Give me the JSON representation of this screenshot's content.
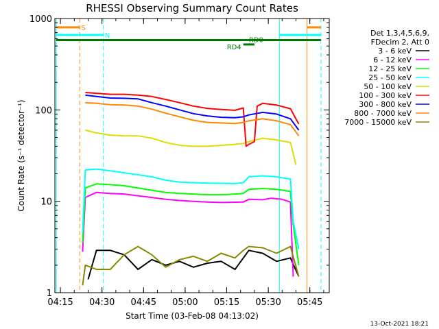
{
  "chart_data": {
    "type": "line",
    "title": "RHESSI Observing Summary Count Rates",
    "xlabel": "Start Time (03-Feb-08 04:13:02)",
    "ylabel": "Count Rate (s⁻¹ detector⁻¹)",
    "yscale": "log",
    "ylim": [
      1,
      1000
    ],
    "xlim_minutes": [
      0,
      99
    ],
    "yticks": [
      {
        "v": 1,
        "label": "1"
      },
      {
        "v": 10,
        "label": "10"
      },
      {
        "v": 100,
        "label": "100"
      },
      {
        "v": 1000,
        "label": "1000"
      }
    ],
    "xticks": [
      {
        "t": 2.0,
        "label": "04:15"
      },
      {
        "t": 17.0,
        "label": "04:30"
      },
      {
        "t": 32.0,
        "label": "04:45"
      },
      {
        "t": 47.0,
        "label": "05:00"
      },
      {
        "t": 62.0,
        "label": "05:15"
      },
      {
        "t": 77.0,
        "label": "05:30"
      },
      {
        "t": 92.0,
        "label": "05:45"
      }
    ],
    "minor_tick_step_minutes": 5,
    "legend_header": [
      "Det 1,3,4,5,6,9,",
      "FDecim 2, Att 0"
    ],
    "legend_position": "right",
    "footer_date": "13-Oct-2021 18:21",
    "series": [
      {
        "name": "3 - 6 keV",
        "color": "#000000",
        "points": [
          [
            12,
            1.4
          ],
          [
            15,
            2.9
          ],
          [
            20,
            2.9
          ],
          [
            25,
            2.6
          ],
          [
            30,
            1.8
          ],
          [
            35,
            2.3
          ],
          [
            40,
            2.0
          ],
          [
            45,
            2.2
          ],
          [
            50,
            1.9
          ],
          [
            55,
            2.1
          ],
          [
            60,
            2.2
          ],
          [
            65,
            1.8
          ],
          [
            70,
            2.9
          ],
          [
            75,
            2.7
          ],
          [
            80,
            2.2
          ],
          [
            85,
            2.4
          ],
          [
            88,
            1.5
          ]
        ]
      },
      {
        "name": "6 - 12 keV",
        "color": "#ff00ff",
        "points": [
          [
            10,
            2.8
          ],
          [
            11,
            11
          ],
          [
            15,
            12.5
          ],
          [
            20,
            12.2
          ],
          [
            25,
            12.0
          ],
          [
            30,
            11.5
          ],
          [
            35,
            11.0
          ],
          [
            40,
            10.5
          ],
          [
            45,
            10.2
          ],
          [
            50,
            10.0
          ],
          [
            55,
            9.8
          ],
          [
            60,
            9.7
          ],
          [
            68,
            9.8
          ],
          [
            70,
            10.5
          ],
          [
            75,
            10.4
          ],
          [
            78,
            10.8
          ],
          [
            82,
            10.5
          ],
          [
            85,
            9.8
          ],
          [
            86,
            1.5
          ]
        ]
      },
      {
        "name": "12 - 25 keV",
        "color": "#00ff00",
        "points": [
          [
            10,
            3.5
          ],
          [
            11,
            14
          ],
          [
            15,
            15.5
          ],
          [
            20,
            15.2
          ],
          [
            25,
            14.8
          ],
          [
            30,
            14.0
          ],
          [
            35,
            13.2
          ],
          [
            40,
            12.5
          ],
          [
            45,
            12.2
          ],
          [
            50,
            12.0
          ],
          [
            55,
            11.8
          ],
          [
            60,
            11.8
          ],
          [
            65,
            12.0
          ],
          [
            68,
            12.2
          ],
          [
            70,
            13.5
          ],
          [
            75,
            13.8
          ],
          [
            80,
            13.5
          ],
          [
            85,
            12.8
          ],
          [
            86,
            5.5
          ],
          [
            88,
            2.0
          ]
        ]
      },
      {
        "name": "25 - 50 keV",
        "color": "#00ffff",
        "points": [
          [
            10,
            4.5
          ],
          [
            11,
            22
          ],
          [
            15,
            22.5
          ],
          [
            20,
            21.5
          ],
          [
            25,
            20.5
          ],
          [
            30,
            19.5
          ],
          [
            35,
            18.5
          ],
          [
            40,
            17.0
          ],
          [
            45,
            16.2
          ],
          [
            50,
            16.0
          ],
          [
            55,
            15.8
          ],
          [
            60,
            15.7
          ],
          [
            65,
            15.6
          ],
          [
            68,
            16.0
          ],
          [
            70,
            18.5
          ],
          [
            75,
            19.0
          ],
          [
            80,
            18.5
          ],
          [
            85,
            17.5
          ],
          [
            86,
            6.0
          ],
          [
            88,
            3.0
          ]
        ]
      },
      {
        "name": "50 - 100 keV",
        "color": "#dddd00",
        "points": [
          [
            11,
            60
          ],
          [
            15,
            56
          ],
          [
            20,
            53
          ],
          [
            25,
            52
          ],
          [
            30,
            52
          ],
          [
            35,
            49
          ],
          [
            40,
            44
          ],
          [
            45,
            41
          ],
          [
            50,
            40
          ],
          [
            55,
            40
          ],
          [
            60,
            41
          ],
          [
            65,
            42
          ],
          [
            68,
            43
          ],
          [
            70,
            45
          ],
          [
            75,
            49
          ],
          [
            80,
            47
          ],
          [
            85,
            44
          ],
          [
            87,
            25
          ]
        ]
      },
      {
        "name": "100 - 300 keV",
        "color": "#ff0000",
        "points": [
          [
            11,
            155
          ],
          [
            15,
            152
          ],
          [
            20,
            148
          ],
          [
            25,
            148
          ],
          [
            30,
            145
          ],
          [
            35,
            140
          ],
          [
            40,
            130
          ],
          [
            45,
            120
          ],
          [
            50,
            110
          ],
          [
            55,
            104
          ],
          [
            60,
            101
          ],
          [
            65,
            99
          ],
          [
            68,
            105
          ],
          [
            69,
            40
          ],
          [
            70,
            42
          ],
          [
            72,
            45
          ],
          [
            73,
            110
          ],
          [
            75,
            118
          ],
          [
            80,
            113
          ],
          [
            85,
            103
          ],
          [
            88,
            70
          ]
        ]
      },
      {
        "name": "300 - 800 keV",
        "color": "#0000ff",
        "points": [
          [
            11,
            145
          ],
          [
            15,
            140
          ],
          [
            20,
            135
          ],
          [
            25,
            134
          ],
          [
            30,
            132
          ],
          [
            35,
            120
          ],
          [
            40,
            110
          ],
          [
            45,
            100
          ],
          [
            50,
            91
          ],
          [
            55,
            86
          ],
          [
            60,
            83
          ],
          [
            65,
            82
          ],
          [
            68,
            84
          ],
          [
            70,
            88
          ],
          [
            75,
            94
          ],
          [
            80,
            90
          ],
          [
            85,
            80
          ],
          [
            88,
            60
          ]
        ]
      },
      {
        "name": "800 - 7000 keV",
        "color": "#ff8800",
        "points": [
          [
            11,
            120
          ],
          [
            15,
            118
          ],
          [
            20,
            114
          ],
          [
            25,
            113
          ],
          [
            30,
            110
          ],
          [
            35,
            102
          ],
          [
            40,
            92
          ],
          [
            45,
            84
          ],
          [
            50,
            77
          ],
          [
            55,
            73
          ],
          [
            60,
            72
          ],
          [
            65,
            71
          ],
          [
            68,
            73
          ],
          [
            70,
            76
          ],
          [
            75,
            80
          ],
          [
            80,
            76
          ],
          [
            85,
            69
          ],
          [
            88,
            52
          ]
        ]
      },
      {
        "name": "7000 - 15000 keV",
        "color": "#888800",
        "points": [
          [
            10,
            1.2
          ],
          [
            11,
            2.0
          ],
          [
            15,
            1.8
          ],
          [
            20,
            1.8
          ],
          [
            25,
            2.6
          ],
          [
            30,
            3.2
          ],
          [
            35,
            2.6
          ],
          [
            40,
            1.9
          ],
          [
            45,
            2.3
          ],
          [
            50,
            2.5
          ],
          [
            55,
            2.2
          ],
          [
            60,
            2.7
          ],
          [
            65,
            2.4
          ],
          [
            68,
            2.9
          ],
          [
            70,
            3.2
          ],
          [
            75,
            3.1
          ],
          [
            80,
            2.7
          ],
          [
            85,
            3.2
          ],
          [
            88,
            1.5
          ]
        ]
      }
    ],
    "annotations": [
      {
        "label": "S",
        "color": "#ff8800"
      },
      {
        "label": "N",
        "color": "#00ffff"
      },
      {
        "label": "RD0",
        "color": "#007700"
      },
      {
        "label": "RD4",
        "color": "#007700"
      }
    ]
  }
}
